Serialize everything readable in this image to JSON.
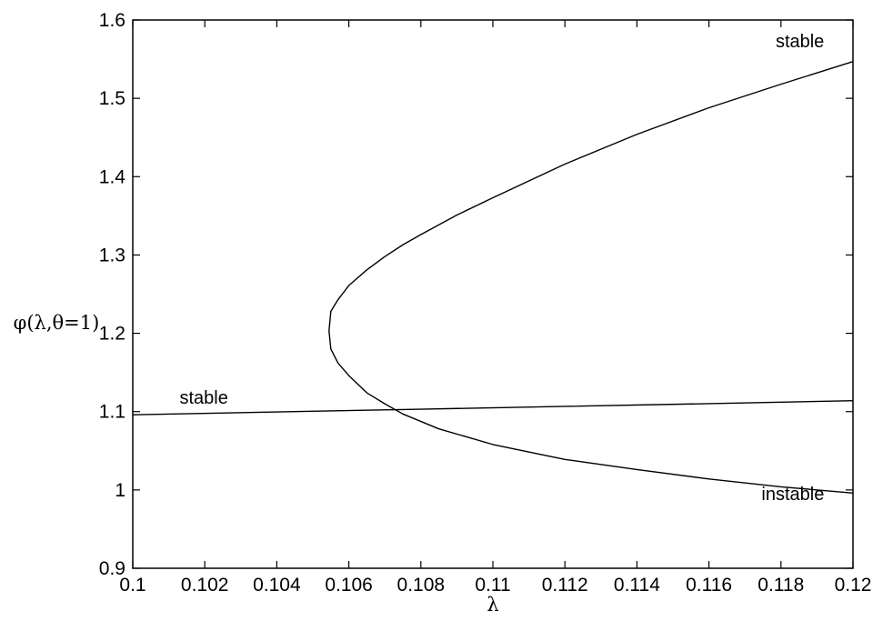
{
  "chart_data": {
    "type": "line",
    "title": "",
    "xlabel": "λ",
    "ylabel": "φ(λ,θ=1)",
    "xlim": [
      0.1,
      0.12
    ],
    "ylim": [
      0.9,
      1.6
    ],
    "xticks": [
      0.1,
      0.102,
      0.104,
      0.106,
      0.108,
      0.11,
      0.112,
      0.114,
      0.116,
      0.118,
      0.12
    ],
    "xtick_labels": [
      "0.1",
      "0.102",
      "0.104",
      "0.106",
      "0.108",
      "0.11",
      "0.112",
      "0.114",
      "0.116",
      "0.118",
      "0.12"
    ],
    "yticks": [
      0.9,
      1.0,
      1.1,
      1.2,
      1.3,
      1.4,
      1.5,
      1.6
    ],
    "ytick_labels": [
      "0.9",
      "1",
      "1.1",
      "1.2",
      "1.3",
      "1.4",
      "1.5",
      "1.6"
    ],
    "grid": false,
    "legend": "none",
    "series": [
      {
        "x": [
          0.1,
          0.104,
          0.108,
          0.112,
          0.116,
          0.12
        ],
        "y": [
          1.096,
          1.0996,
          1.1031,
          1.1067,
          1.1102,
          1.114
        ]
      },
      {
        "x": [
          0.12,
          0.118,
          0.116,
          0.114,
          0.112,
          0.11,
          0.1085,
          0.1075,
          0.107,
          0.1065,
          0.106,
          0.1057,
          0.1055,
          0.10545,
          0.1055,
          0.1057,
          0.106,
          0.1065,
          0.107,
          0.1075,
          0.108,
          0.109,
          0.11,
          0.112,
          0.114,
          0.116,
          0.118,
          0.12
        ],
        "y": [
          0.996,
          1.004,
          1.014,
          1.026,
          1.039,
          1.058,
          1.078,
          1.097,
          1.11,
          1.124,
          1.146,
          1.162,
          1.18,
          1.203,
          1.228,
          1.243,
          1.261,
          1.281,
          1.298,
          1.313,
          1.326,
          1.351,
          1.373,
          1.416,
          1.454,
          1.488,
          1.518,
          1.547
        ]
      }
    ],
    "annotations": [
      {
        "text": "stable",
        "x": 0.1192,
        "y": 1.565
      },
      {
        "text": "stable",
        "x": 0.1013,
        "y": 1.11
      },
      {
        "text": "instable",
        "x": 0.1192,
        "y": 0.987
      }
    ]
  }
}
